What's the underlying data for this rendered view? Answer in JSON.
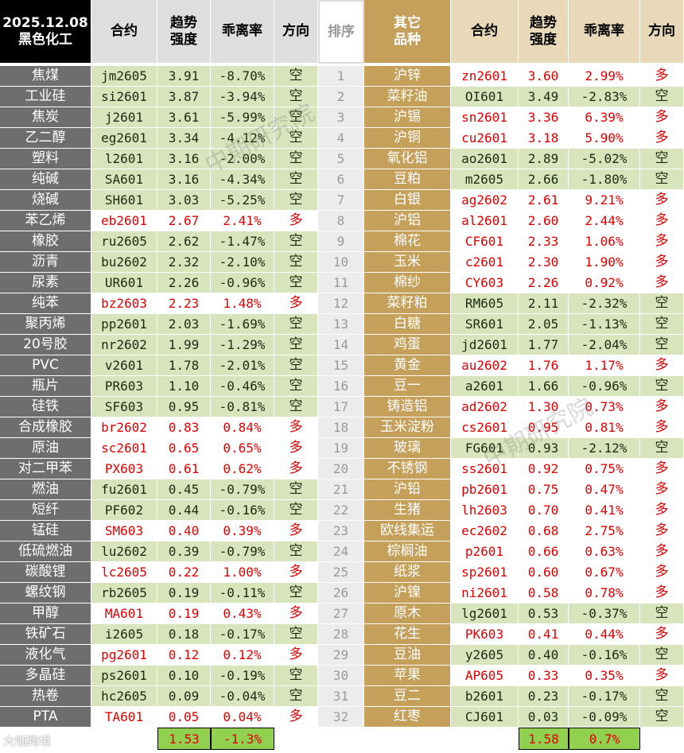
{
  "header": {
    "date": "2025.12.08",
    "left_group": "黑色化工",
    "rank": "排序",
    "right_group": [
      "其它",
      "品种"
    ],
    "columns": [
      "合约",
      [
        "趋势",
        "强度"
      ],
      "乖离率",
      "方向"
    ]
  },
  "ranks": [
    1,
    2,
    3,
    4,
    5,
    6,
    7,
    8,
    9,
    10,
    11,
    12,
    13,
    14,
    15,
    16,
    17,
    18,
    19,
    20,
    21,
    22,
    23,
    24,
    25,
    26,
    27,
    28,
    29,
    30,
    31,
    32
  ],
  "left_rows": [
    [
      "焦煤",
      "jm2605",
      "3.91",
      "-8.70%",
      "空"
    ],
    [
      "工业硅",
      "si2601",
      "3.87",
      "-3.94%",
      "空"
    ],
    [
      "焦炭",
      "j2601",
      "3.61",
      "-5.99%",
      "空"
    ],
    [
      "乙二醇",
      "eg2601",
      "3.34",
      "-4.12%",
      "空"
    ],
    [
      "塑料",
      "l2601",
      "3.16",
      "-2.00%",
      "空"
    ],
    [
      "纯碱",
      "SA601",
      "3.16",
      "-4.34%",
      "空"
    ],
    [
      "烧碱",
      "SH601",
      "3.03",
      "-5.25%",
      "空"
    ],
    [
      "苯乙烯",
      "eb2601",
      "2.67",
      "2.41%",
      "多"
    ],
    [
      "橡胶",
      "ru2605",
      "2.62",
      "-1.47%",
      "空"
    ],
    [
      "沥青",
      "bu2602",
      "2.32",
      "-2.10%",
      "空"
    ],
    [
      "尿素",
      "UR601",
      "2.26",
      "-0.96%",
      "空"
    ],
    [
      "纯苯",
      "bz2603",
      "2.23",
      "1.48%",
      "多"
    ],
    [
      "聚丙烯",
      "pp2601",
      "2.03",
      "-1.69%",
      "空"
    ],
    [
      "20号胶",
      "nr2602",
      "1.99",
      "-1.29%",
      "空"
    ],
    [
      "PVC",
      "v2601",
      "1.78",
      "-2.01%",
      "空"
    ],
    [
      "瓶片",
      "PR603",
      "1.10",
      "-0.46%",
      "空"
    ],
    [
      "硅铁",
      "SF603",
      "0.95",
      "-0.81%",
      "空"
    ],
    [
      "合成橡胶",
      "br2602",
      "0.83",
      "0.84%",
      "多"
    ],
    [
      "原油",
      "sc2601",
      "0.65",
      "0.65%",
      "多"
    ],
    [
      "对二甲苯",
      "PX603",
      "0.61",
      "0.62%",
      "多"
    ],
    [
      "燃油",
      "fu2601",
      "0.45",
      "-0.79%",
      "空"
    ],
    [
      "短纤",
      "PF602",
      "0.44",
      "-0.16%",
      "空"
    ],
    [
      "锰硅",
      "SM603",
      "0.40",
      "0.39%",
      "多"
    ],
    [
      "低硫燃油",
      "lu2602",
      "0.39",
      "-0.79%",
      "空"
    ],
    [
      "碳酸锂",
      "lc2605",
      "0.22",
      "1.00%",
      "多"
    ],
    [
      "螺纹钢",
      "rb2605",
      "0.19",
      "-0.11%",
      "空"
    ],
    [
      "甲醇",
      "MA601",
      "0.19",
      "0.43%",
      "多"
    ],
    [
      "铁矿石",
      "i2605",
      "0.18",
      "-0.17%",
      "空"
    ],
    [
      "液化气",
      "pg2601",
      "0.12",
      "0.12%",
      "多"
    ],
    [
      "多晶硅",
      "ps2601",
      "0.10",
      "-0.19%",
      "空"
    ],
    [
      "热卷",
      "hc2605",
      "0.09",
      "-0.04%",
      "空"
    ],
    [
      "PTA",
      "TA601",
      "0.05",
      "0.04%",
      "多"
    ]
  ],
  "right_rows": [
    [
      "沪锌",
      "zn2601",
      "3.60",
      "2.99%",
      "多"
    ],
    [
      "菜籽油",
      "OI601",
      "3.49",
      "-2.83%",
      "空"
    ],
    [
      "沪锡",
      "sn2601",
      "3.36",
      "6.39%",
      "多"
    ],
    [
      "沪铜",
      "cu2601",
      "3.18",
      "5.90%",
      "多"
    ],
    [
      "氧化铝",
      "ao2601",
      "2.89",
      "-5.02%",
      "空"
    ],
    [
      "豆粕",
      "m2605",
      "2.66",
      "-1.80%",
      "空"
    ],
    [
      "白银",
      "ag2602",
      "2.61",
      "9.21%",
      "多"
    ],
    [
      "沪铝",
      "al2601",
      "2.60",
      "2.44%",
      "多"
    ],
    [
      "棉花",
      "CF601",
      "2.33",
      "1.06%",
      "多"
    ],
    [
      "玉米",
      "c2601",
      "2.30",
      "1.90%",
      "多"
    ],
    [
      "棉纱",
      "CY603",
      "2.26",
      "0.92%",
      "多"
    ],
    [
      "菜籽粕",
      "RM605",
      "2.11",
      "-2.32%",
      "空"
    ],
    [
      "白糖",
      "SR601",
      "2.05",
      "-1.13%",
      "空"
    ],
    [
      "鸡蛋",
      "jd2601",
      "1.77",
      "-2.04%",
      "空"
    ],
    [
      "黄金",
      "au2602",
      "1.76",
      "1.17%",
      "多"
    ],
    [
      "豆一",
      "a2601",
      "1.66",
      "-0.96%",
      "空"
    ],
    [
      "铸造铝",
      "ad2602",
      "1.30",
      "0.73%",
      "多"
    ],
    [
      "玉米淀粉",
      "cs2601",
      "0.95",
      "0.81%",
      "多"
    ],
    [
      "玻璃",
      "FG601",
      "0.93",
      "-2.12%",
      "空"
    ],
    [
      "不锈钢",
      "ss2601",
      "0.92",
      "0.75%",
      "多"
    ],
    [
      "沪铅",
      "pb2601",
      "0.75",
      "0.47%",
      "多"
    ],
    [
      "生猪",
      "lh2603",
      "0.70",
      "0.41%",
      "多"
    ],
    [
      "欧线集运",
      "ec2602",
      "0.68",
      "2.75%",
      "多"
    ],
    [
      "棕榈油",
      "p2601",
      "0.66",
      "0.63%",
      "多"
    ],
    [
      "纸浆",
      "sp2601",
      "0.60",
      "0.67%",
      "多"
    ],
    [
      "沪镍",
      "ni2601",
      "0.58",
      "0.78%",
      "多"
    ],
    [
      "原木",
      "lg2601",
      "0.53",
      "-0.37%",
      "空"
    ],
    [
      "花生",
      "PK603",
      "0.41",
      "0.44%",
      "多"
    ],
    [
      "豆油",
      "y2605",
      "0.40",
      "-0.16%",
      "空"
    ],
    [
      "苹果",
      "AP605",
      "0.33",
      "0.35%",
      "多"
    ],
    [
      "豆二",
      "b2601",
      "0.23",
      "-0.17%",
      "空"
    ],
    [
      "红枣",
      "CJ601",
      "0.03",
      "-0.09%",
      "空"
    ]
  ],
  "left_summary": [
    "1.53",
    "-1.3%"
  ],
  "right_summary": [
    "1.58",
    "0.7%"
  ],
  "watermark": "中期研究院",
  "footer_logo": "大咖跨境"
}
